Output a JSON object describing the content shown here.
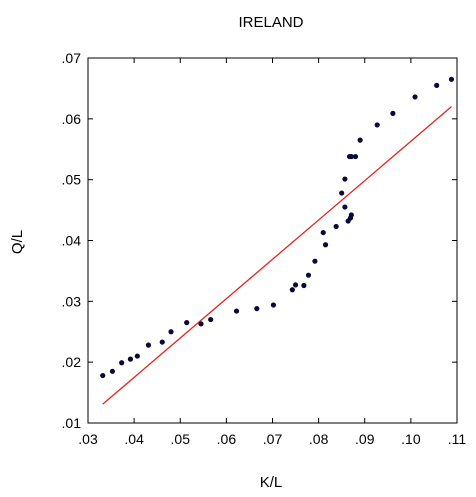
{
  "chart_data": {
    "type": "scatter",
    "title": "IRELAND",
    "xlabel": "K/L",
    "ylabel": "Q/L",
    "xlim": [
      0.03,
      0.11
    ],
    "ylim": [
      0.01,
      0.07
    ],
    "x_ticks": [
      0.03,
      0.04,
      0.05,
      0.06,
      0.07,
      0.08,
      0.09,
      0.1,
      0.11
    ],
    "x_tick_labels": [
      ".03",
      ".04",
      ".05",
      ".06",
      ".07",
      ".08",
      ".09",
      ".10",
      ".11"
    ],
    "y_ticks": [
      0.01,
      0.02,
      0.03,
      0.04,
      0.05,
      0.06,
      0.07
    ],
    "y_tick_labels": [
      ".01",
      ".02",
      ".03",
      ".04",
      ".05",
      ".06",
      ".07"
    ],
    "grid": false,
    "colors": {
      "points": "#0a0a3a",
      "fit_line": "#e8231c",
      "frame": "#000000"
    },
    "series": [
      {
        "kind": "points",
        "x": [
          0.0332,
          0.0353,
          0.0373,
          0.0392,
          0.0407,
          0.0431,
          0.0461,
          0.048,
          0.0514,
          0.0545,
          0.0566,
          0.0622,
          0.0666,
          0.0702,
          0.0743,
          0.075,
          0.0768,
          0.0778,
          0.0792,
          0.081,
          0.0815,
          0.0838,
          0.085,
          0.0857,
          0.0857,
          0.0864,
          0.0869,
          0.0871,
          0.0867,
          0.0871,
          0.088,
          0.089,
          0.0927,
          0.0961,
          0.1009,
          0.1056,
          0.1088
        ],
        "y": [
          0.0178,
          0.0185,
          0.0199,
          0.0205,
          0.021,
          0.0228,
          0.0233,
          0.025,
          0.0265,
          0.0263,
          0.027,
          0.0284,
          0.0288,
          0.0294,
          0.0319,
          0.0327,
          0.0326,
          0.0343,
          0.0366,
          0.0413,
          0.0393,
          0.0423,
          0.0478,
          0.0501,
          0.0455,
          0.0432,
          0.0437,
          0.0442,
          0.0538,
          0.0538,
          0.0538,
          0.0565,
          0.059,
          0.0609,
          0.0636,
          0.0655,
          0.0665
        ]
      },
      {
        "kind": "fit_line",
        "x": [
          0.0332,
          0.1088
        ],
        "y": [
          0.0131,
          0.062
        ]
      }
    ]
  }
}
